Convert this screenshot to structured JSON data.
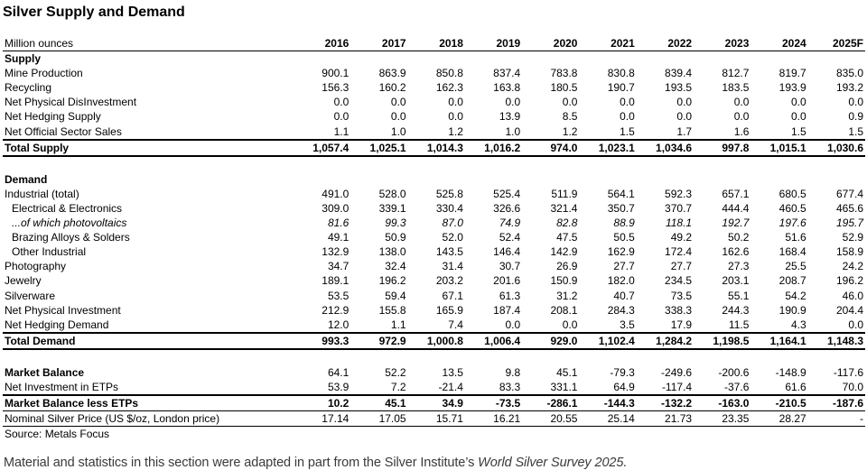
{
  "title": "Silver Supply and Demand",
  "accent_colors": {
    "text": "#000000",
    "footer_text": "#3a3a3a",
    "background": "#ffffff"
  },
  "table": {
    "unit_label": "Million ounces",
    "years": [
      "2016",
      "2017",
      "2018",
      "2019",
      "2020",
      "2021",
      "2022",
      "2023",
      "2024",
      "2025F"
    ],
    "rows": [
      {
        "style": "section",
        "label": "Supply",
        "values": []
      },
      {
        "style": "plain",
        "label": "Mine Production",
        "values": [
          "900.1",
          "863.9",
          "850.8",
          "837.4",
          "783.8",
          "830.8",
          "839.4",
          "812.7",
          "819.7",
          "835.0"
        ]
      },
      {
        "style": "plain",
        "label": "Recycling",
        "values": [
          "156.3",
          "160.2",
          "162.3",
          "163.8",
          "180.5",
          "190.7",
          "193.5",
          "183.5",
          "193.9",
          "193.2"
        ]
      },
      {
        "style": "plain",
        "label": "Net Physical DisInvestment",
        "values": [
          "0.0",
          "0.0",
          "0.0",
          "0.0",
          "0.0",
          "0.0",
          "0.0",
          "0.0",
          "0.0",
          "0.0"
        ]
      },
      {
        "style": "plain",
        "label": "Net Hedging Supply",
        "values": [
          "0.0",
          "0.0",
          "0.0",
          "13.9",
          "8.5",
          "0.0",
          "0.0",
          "0.0",
          "0.0",
          "0.9"
        ]
      },
      {
        "style": "plain",
        "label": "Net Official Sector Sales",
        "values": [
          "1.1",
          "1.0",
          "1.2",
          "1.0",
          "1.2",
          "1.5",
          "1.7",
          "1.6",
          "1.5",
          "1.5"
        ]
      },
      {
        "style": "total",
        "label": "Total Supply",
        "values": [
          "1,057.4",
          "1,025.1",
          "1,014.3",
          "1,016.2",
          "974.0",
          "1,023.1",
          "1,034.6",
          "997.8",
          "1,015.1",
          "1,030.6"
        ]
      },
      {
        "style": "spacer",
        "label": "",
        "values": []
      },
      {
        "style": "section",
        "label": "Demand",
        "values": []
      },
      {
        "style": "plain",
        "label": "Industrial (total)",
        "values": [
          "491.0",
          "528.0",
          "525.8",
          "525.4",
          "511.9",
          "564.1",
          "592.3",
          "657.1",
          "680.5",
          "677.4"
        ]
      },
      {
        "style": "indent",
        "label": "Electrical & Electronics",
        "values": [
          "309.0",
          "339.1",
          "330.4",
          "326.6",
          "321.4",
          "350.7",
          "370.7",
          "444.4",
          "460.5",
          "465.6"
        ]
      },
      {
        "style": "indent-italic",
        "label": "...of which photovoltaics",
        "values": [
          "81.6",
          "99.3",
          "87.0",
          "74.9",
          "82.8",
          "88.9",
          "118.1",
          "192.7",
          "197.6",
          "195.7"
        ]
      },
      {
        "style": "indent",
        "label": "Brazing Alloys & Solders",
        "values": [
          "49.1",
          "50.9",
          "52.0",
          "52.4",
          "47.5",
          "50.5",
          "49.2",
          "50.2",
          "51.6",
          "52.9"
        ]
      },
      {
        "style": "indent",
        "label": "Other Industrial",
        "values": [
          "132.9",
          "138.0",
          "143.5",
          "146.4",
          "142.9",
          "162.9",
          "172.4",
          "162.6",
          "168.4",
          "158.9"
        ]
      },
      {
        "style": "plain",
        "label": "Photography",
        "values": [
          "34.7",
          "32.4",
          "31.4",
          "30.7",
          "26.9",
          "27.7",
          "27.7",
          "27.3",
          "25.5",
          "24.2"
        ]
      },
      {
        "style": "plain",
        "label": "Jewelry",
        "values": [
          "189.1",
          "196.2",
          "203.2",
          "201.6",
          "150.9",
          "182.0",
          "234.5",
          "203.1",
          "208.7",
          "196.2"
        ]
      },
      {
        "style": "plain",
        "label": "Silverware",
        "values": [
          "53.5",
          "59.4",
          "67.1",
          "61.3",
          "31.2",
          "40.7",
          "73.5",
          "55.1",
          "54.2",
          "46.0"
        ]
      },
      {
        "style": "plain",
        "label": "Net Physical Investment",
        "values": [
          "212.9",
          "155.8",
          "165.9",
          "187.4",
          "208.1",
          "284.3",
          "338.3",
          "244.3",
          "190.9",
          "204.4"
        ]
      },
      {
        "style": "plain",
        "label": "Net Hedging Demand",
        "values": [
          "12.0",
          "1.1",
          "7.4",
          "0.0",
          "0.0",
          "3.5",
          "17.9",
          "11.5",
          "4.3",
          "0.0"
        ]
      },
      {
        "style": "total",
        "label": "Total Demand",
        "values": [
          "993.3",
          "972.9",
          "1,000.8",
          "1,006.4",
          "929.0",
          "1,102.4",
          "1,284.2",
          "1,198.5",
          "1,164.1",
          "1,148.3"
        ]
      },
      {
        "style": "spacer",
        "label": "",
        "values": []
      },
      {
        "style": "bold-label",
        "label": "Market Balance",
        "values": [
          "64.1",
          "52.2",
          "13.5",
          "9.8",
          "45.1",
          "-79.3",
          "-249.6",
          "-200.6",
          "-148.9",
          "-117.6"
        ]
      },
      {
        "style": "plain",
        "label": "Net Investment in ETPs",
        "values": [
          "53.9",
          "7.2",
          "-21.4",
          "83.3",
          "331.1",
          "64.9",
          "-117.4",
          "-37.6",
          "61.6",
          "70.0"
        ]
      },
      {
        "style": "subtotal",
        "label": "Market Balance less ETPs",
        "values": [
          "10.2",
          "45.1",
          "34.9",
          "-73.5",
          "-286.1",
          "-144.3",
          "-132.2",
          "-163.0",
          "-210.5",
          "-187.6"
        ]
      },
      {
        "style": "priceline",
        "label": "Nominal Silver Price (US $/oz, London price)",
        "values": [
          "17.14",
          "17.05",
          "15.71",
          "16.21",
          "20.55",
          "25.14",
          "21.73",
          "23.35",
          "28.27",
          "-"
        ]
      },
      {
        "style": "source",
        "label": "Source: Metals Focus",
        "values": []
      }
    ]
  },
  "footer": {
    "text_before_italic": "Material and statistics in this section were adapted in part from the Silver Institute’s ",
    "italic_text": "World Silver Survey 2025."
  }
}
